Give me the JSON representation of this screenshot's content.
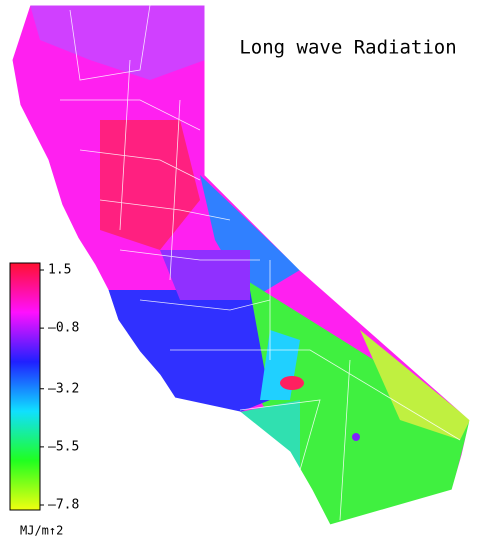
{
  "title": "Long wave Radiation",
  "colorbar": {
    "lim": [
      -7.8,
      1.5
    ],
    "ticks": [
      {
        "value": 1.5,
        "label": "1.5"
      },
      {
        "value": -0.8,
        "label": "–0.8"
      },
      {
        "value": -3.2,
        "label": "–3.2"
      },
      {
        "value": -5.5,
        "label": "–5.5"
      },
      {
        "value": -7.8,
        "label": "–7.8"
      }
    ],
    "colormap": [
      "#ff1030",
      "#ff10ff",
      "#2020ff",
      "#10e0ff",
      "#20ff20",
      "#f0ff10"
    ],
    "unit": "MJ/m↑2"
  }
}
